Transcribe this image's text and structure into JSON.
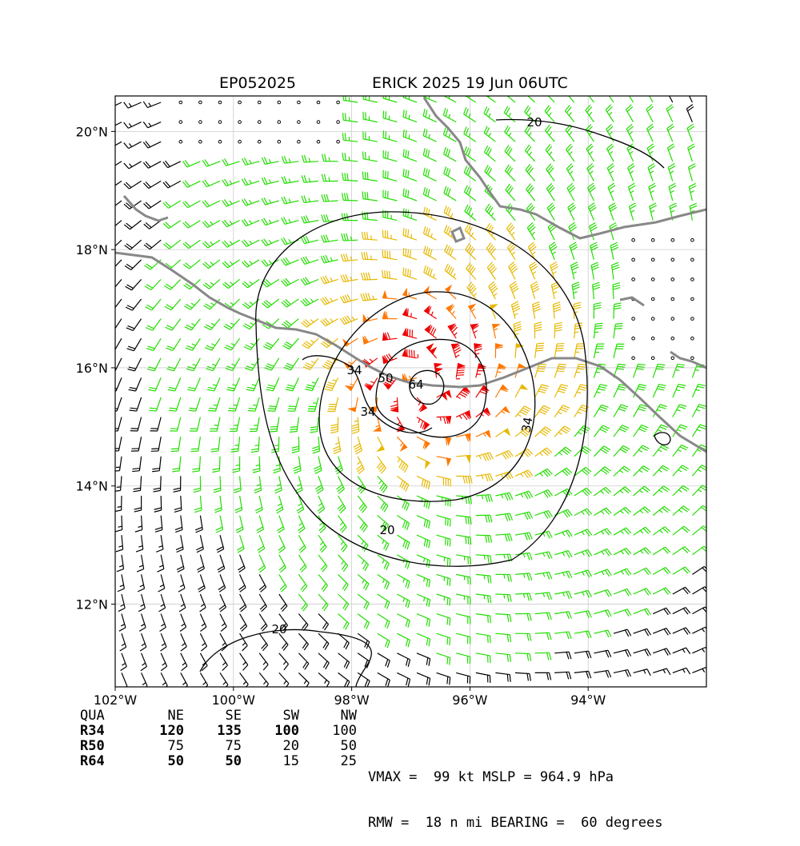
{
  "header": {
    "storm_id": "EP052025",
    "storm_title": "ERICK 2025 19 Jun 06UTC"
  },
  "map": {
    "lon_range": [
      -102.0,
      -92.0
    ],
    "lat_range": [
      10.6,
      20.6
    ],
    "lat_ticks": [
      {
        "value": 20,
        "label": "20°N"
      },
      {
        "value": 18,
        "label": "18°N"
      },
      {
        "value": 16,
        "label": "16°N"
      },
      {
        "value": 14,
        "label": "14°N"
      },
      {
        "value": 12,
        "label": "12°N"
      }
    ],
    "lon_ticks": [
      {
        "value": -102,
        "label": "102°W"
      },
      {
        "value": -100,
        "label": "100°W"
      },
      {
        "value": -98,
        "label": "98°W"
      },
      {
        "value": -96,
        "label": "96°W"
      },
      {
        "value": -94,
        "label": "94°W"
      }
    ],
    "grid": true,
    "storm_center": {
      "lon": -96.8,
      "lat": 15.7
    },
    "contour_labels": [
      "20",
      "34",
      "34",
      "50",
      "64",
      "20",
      "34",
      "20"
    ],
    "colors": {
      "coast": "#888888",
      "calm_barb": "#000000",
      "gale": "#22dd00",
      "storm": "#e6b800",
      "strong": "#ff7700",
      "hurricane": "#ee0000",
      "contour": "#000000"
    }
  },
  "radii_table": {
    "header": [
      "QUA",
      "NE",
      "SE",
      "SW",
      "NW"
    ],
    "rows": [
      {
        "label": "R34",
        "values": [
          "120",
          "135",
          "100",
          "100"
        ]
      },
      {
        "label": "R50",
        "values": [
          "75",
          "75",
          "20",
          "50"
        ]
      },
      {
        "label": "R64",
        "values": [
          "50",
          "50",
          "15",
          "25"
        ]
      }
    ]
  },
  "summary": {
    "line1": "VMAX =  99 kt MSLP = 964.9 hPa",
    "line2": "RMW =  18 n mi BEARING =  60 degrees"
  }
}
